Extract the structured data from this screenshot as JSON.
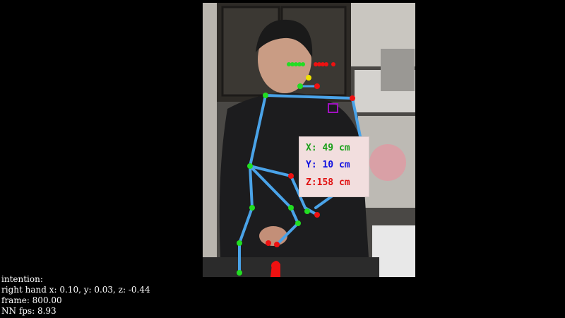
{
  "overlay": {
    "x_label": "X: 49 cm",
    "y_label": "Y: 10 cm",
    "z_label": "Z:158 cm",
    "x_color": "#1aa01a",
    "y_color": "#1010e0",
    "z_color": "#e01010"
  },
  "info": {
    "intention": "intention:",
    "right_hand": "right hand x: 0.10, y: 0.03, z: -0.44",
    "frame": "frame: 800.00",
    "fps": "NN fps: 8.93"
  },
  "skeleton": {
    "limb_color": "#4aa3e8",
    "left_joint_color": "#22dd22",
    "right_joint_color": "#ee1111",
    "target_color": "#a010c0"
  }
}
